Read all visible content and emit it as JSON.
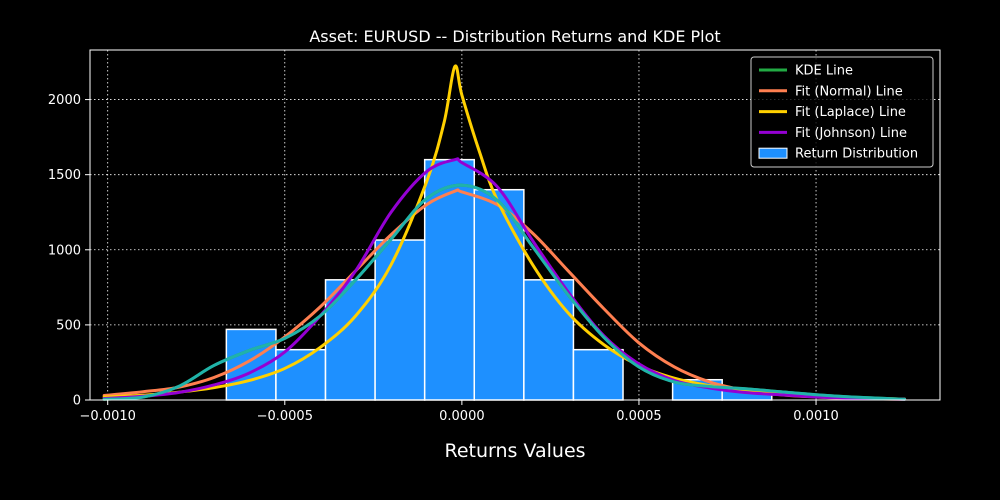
{
  "chart_data": {
    "type": "bar",
    "title": "Asset: EURUSD -- Distribution Returns and KDE Plot",
    "xlabel": "Returns Values",
    "ylabel": "",
    "xlim": [
      -0.00105,
      0.00135
    ],
    "ylim": [
      0,
      2330
    ],
    "x_ticks": [
      -0.001,
      -0.0005,
      0.0,
      0.0005,
      0.001
    ],
    "x_tick_labels": [
      "−0.0010",
      "−0.0005",
      "0.0000",
      "0.0005",
      "0.0010"
    ],
    "y_ticks": [
      0,
      500,
      1000,
      1500,
      2000
    ],
    "y_tick_labels": [
      "0",
      "500",
      "1000",
      "1500",
      "2000"
    ],
    "grid": true,
    "legend_position": "top-right",
    "background_color": "#000000",
    "histogram": {
      "name": "Return Distribution",
      "color": "#1e90ff",
      "edge_color": "#ffffff",
      "bins": [
        {
          "x0": -0.000665,
          "x1": -0.000525,
          "value": 470
        },
        {
          "x0": -0.000525,
          "x1": -0.000385,
          "value": 335
        },
        {
          "x0": -0.000385,
          "x1": -0.000245,
          "value": 800
        },
        {
          "x0": -0.000245,
          "x1": -0.000105,
          "value": 1065
        },
        {
          "x0": -0.000105,
          "x1": 3.5e-05,
          "value": 1600
        },
        {
          "x0": 3.5e-05,
          "x1": 0.000175,
          "value": 1400
        },
        {
          "x0": 0.000175,
          "x1": 0.000315,
          "value": 800
        },
        {
          "x0": 0.000315,
          "x1": 0.000455,
          "value": 335
        },
        {
          "x0": 0.000455,
          "x1": 0.000595,
          "value": 0
        },
        {
          "x0": 0.000595,
          "x1": 0.000735,
          "value": 135
        },
        {
          "x0": 0.000735,
          "x1": 0.000875,
          "value": 65
        },
        {
          "x0": 0.000875,
          "x1": 0.001015,
          "value": 0
        },
        {
          "x0": 0.001015,
          "x1": 0.001155,
          "value": 0
        },
        {
          "x0": 0.001155,
          "x1": 0.001255,
          "value": 0
        }
      ]
    },
    "series": [
      {
        "name": "KDE Line",
        "color": "#22aa44",
        "x": [
          -0.00101,
          -0.0009,
          -0.0008,
          -0.0007,
          -0.0006,
          -0.0005,
          -0.0004,
          -0.0003,
          -0.0002,
          -0.0001,
          0.0,
          0.0001,
          0.0002,
          0.0003,
          0.0004,
          0.0005,
          0.0006,
          0.0007,
          0.0008,
          0.0009,
          0.001,
          0.0011,
          0.00125
        ],
        "y": [
          5,
          20,
          90,
          230,
          330,
          410,
          560,
          800,
          1070,
          1340,
          1430,
          1330,
          1020,
          700,
          420,
          220,
          120,
          90,
          75,
          55,
          35,
          20,
          5
        ]
      },
      {
        "name": "Fit (Normal) Line",
        "color": "#ff7f50",
        "x": [
          -0.00101,
          -0.0009,
          -0.0008,
          -0.0007,
          -0.0006,
          -0.0005,
          -0.0004,
          -0.0003,
          -0.0002,
          -0.0001,
          -2e-05,
          0.0,
          0.0001,
          0.0002,
          0.0003,
          0.0004,
          0.0005,
          0.0006,
          0.0007,
          0.0008,
          0.0009,
          0.001,
          0.0011,
          0.00125
        ],
        "y": [
          30,
          55,
          85,
          150,
          260,
          420,
          620,
          860,
          1100,
          1300,
          1390,
          1385,
          1300,
          1110,
          860,
          610,
          380,
          220,
          120,
          65,
          35,
          20,
          10,
          5
        ]
      },
      {
        "name": "Fit (Laplace) Line",
        "color": "#ffd000",
        "x": [
          -0.00101,
          -0.0009,
          -0.0008,
          -0.0007,
          -0.0006,
          -0.0005,
          -0.0004,
          -0.0003,
          -0.0002,
          -0.0001,
          -5e-05,
          -2e-05,
          0.0,
          5e-05,
          0.0001,
          0.0002,
          0.0003,
          0.0004,
          0.0005,
          0.0006,
          0.0007,
          0.0008,
          0.0009,
          0.001,
          0.0011,
          0.00125
        ],
        "y": [
          20,
          32,
          52,
          82,
          130,
          210,
          350,
          560,
          900,
          1450,
          1850,
          2220,
          2030,
          1650,
          1330,
          900,
          580,
          370,
          230,
          145,
          95,
          60,
          40,
          25,
          15,
          6
        ]
      },
      {
        "name": "Fit (Johnson) Line",
        "color": "#9400d3",
        "x": [
          -0.00101,
          -0.0009,
          -0.0008,
          -0.0007,
          -0.0006,
          -0.0005,
          -0.0004,
          -0.0003,
          -0.0002,
          -0.0001,
          -2e-05,
          0.0,
          0.0001,
          0.0002,
          0.0003,
          0.0004,
          0.0005,
          0.0006,
          0.0007,
          0.0008,
          0.0009,
          0.001,
          0.0011,
          0.00125
        ],
        "y": [
          10,
          25,
          50,
          100,
          180,
          320,
          560,
          860,
          1250,
          1520,
          1600,
          1580,
          1420,
          1060,
          720,
          430,
          240,
          130,
          80,
          50,
          35,
          20,
          12,
          5
        ]
      },
      {
        "name": "",
        "color": "#20b2aa",
        "x": [
          -0.00101,
          -0.0009,
          -0.0008,
          -0.0007,
          -0.0006,
          -0.0005,
          -0.0004,
          -0.0003,
          -0.0002,
          -0.0001,
          0.0,
          0.0001,
          0.0002,
          0.0003,
          0.0004,
          0.0005,
          0.0006,
          0.0007,
          0.0008,
          0.0009,
          0.001,
          0.0011,
          0.00125
        ],
        "y": [
          5,
          20,
          90,
          230,
          330,
          410,
          560,
          800,
          1070,
          1340,
          1430,
          1330,
          1020,
          700,
          420,
          220,
          120,
          90,
          75,
          55,
          35,
          20,
          5
        ]
      }
    ]
  }
}
